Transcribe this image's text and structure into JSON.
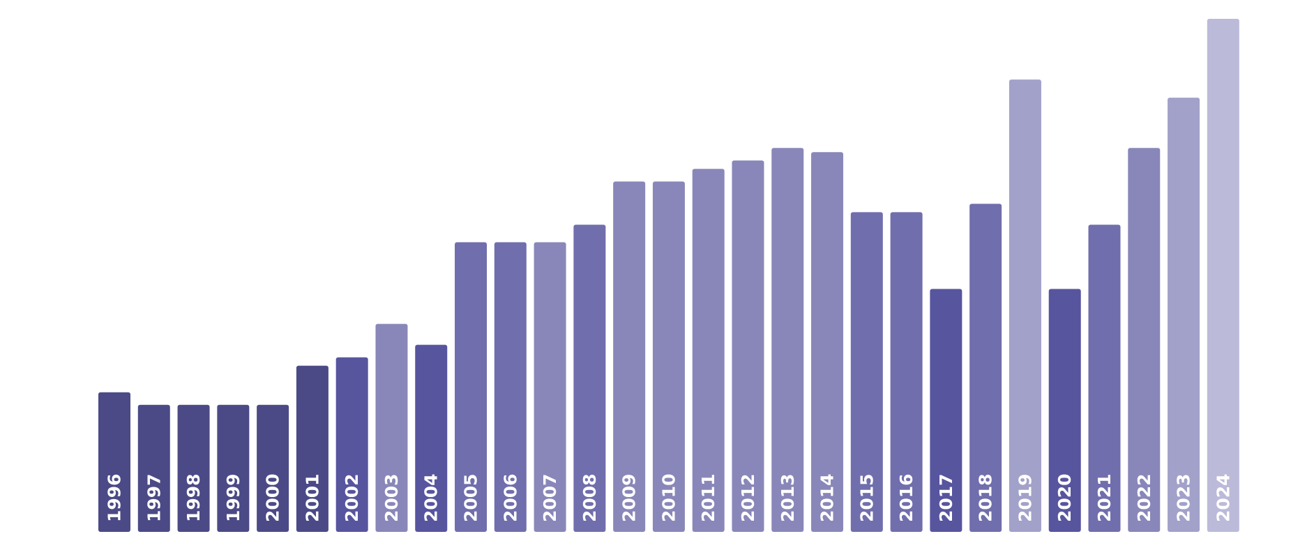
{
  "chart_data": {
    "type": "bar",
    "title": "",
    "xlabel": "",
    "ylabel": "",
    "categories": [
      "1996",
      "1997",
      "1998",
      "1999",
      "2000",
      "2001",
      "2002",
      "2003",
      "2004",
      "2005",
      "2006",
      "2007",
      "2008",
      "2009",
      "2010",
      "2011",
      "2012",
      "2013",
      "2014",
      "2015",
      "2016",
      "2017",
      "2018",
      "2019",
      "2020",
      "2021",
      "2022",
      "2023",
      "2024"
    ],
    "values": [
      200,
      182,
      182,
      182,
      182,
      238,
      250,
      298,
      268,
      415,
      415,
      415,
      440,
      502,
      502,
      520,
      532,
      550,
      544,
      458,
      458,
      348,
      470,
      648,
      348,
      440,
      550,
      622,
      735
    ],
    "ylim": [
      0,
      735
    ],
    "grid": false,
    "legend": "none",
    "colors": [
      "#4b4a86",
      "#4b4a86",
      "#4b4a86",
      "#4b4a86",
      "#4b4a86",
      "#4b4a86",
      "#57559e",
      "#8987b9",
      "#57559e",
      "#706eac",
      "#706eac",
      "#8987b9",
      "#706eac",
      "#8987b9",
      "#8987b9",
      "#8987b9",
      "#8987b9",
      "#8987b9",
      "#8987b9",
      "#706eac",
      "#706eac",
      "#57559e",
      "#706eac",
      "#a2a1c9",
      "#57559e",
      "#706eac",
      "#8987b9",
      "#a2a1c9",
      "#bbbad9"
    ],
    "label_color": "#ffffff"
  }
}
